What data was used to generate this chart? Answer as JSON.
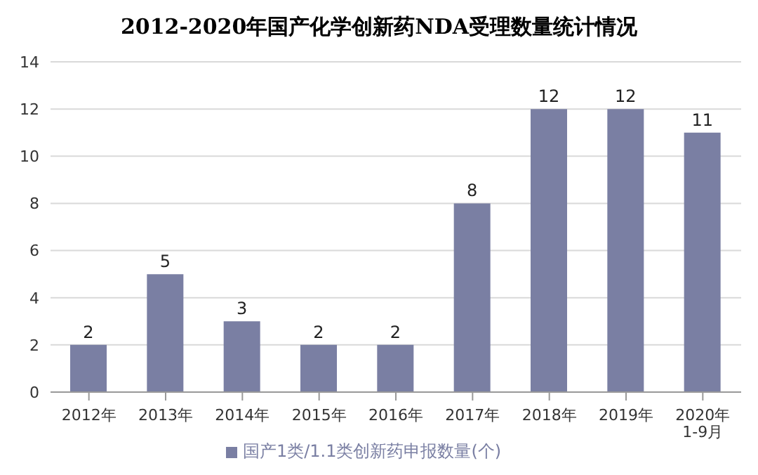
{
  "chart_data": {
    "type": "bar",
    "title": "2012-2020年国产化学创新药NDA受理数量统计情况",
    "categories": [
      "2012年",
      "2013年",
      "2014年",
      "2015年",
      "2016年",
      "2017年",
      "2018年",
      "2019年",
      "2020年1-9月"
    ],
    "series": [
      {
        "name": "国产1类/1.1类创新药申报数量(个)",
        "color": "#7a7fa3",
        "values": [
          2,
          5,
          3,
          2,
          2,
          8,
          12,
          12,
          11
        ]
      }
    ],
    "ylim": [
      0,
      14
    ],
    "yticks": [
      0,
      2,
      4,
      6,
      8,
      10,
      12,
      14
    ],
    "grid": "y",
    "legend": "bottom",
    "data_labels": true
  }
}
